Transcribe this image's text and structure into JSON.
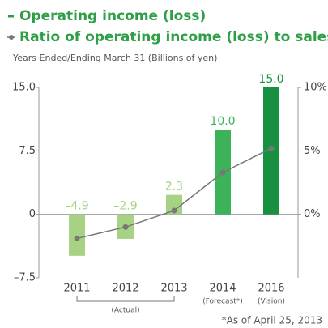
{
  "chart_data": {
    "type": "bar",
    "subtitle": "Years Ended/Ending March 31 (Billions of yen)",
    "categories": [
      "2011",
      "2012",
      "2013",
      "2014",
      "2016"
    ],
    "category_notes": [
      null,
      null,
      null,
      "(Forecast*)",
      "(Vision)"
    ],
    "group_label": "(Actual)",
    "note": "*As of April 25, 2013",
    "series": [
      {
        "name": "Operating income (loss)",
        "type": "bar",
        "color": "#2e9e47",
        "colors": [
          "#a8d283",
          "#a8d283",
          "#a8d283",
          "#3cb35a",
          "#17913f"
        ],
        "values": [
          -4.9,
          -2.9,
          2.3,
          10.0,
          15.0
        ],
        "value_labels": [
          "–4.9",
          "–2.9",
          "2.3",
          "10.0",
          "15.0"
        ]
      },
      {
        "name": "Ratio of operating income (loss) to sales",
        "type": "line",
        "axis": "y2",
        "color": "#777777",
        "values": [
          -1.9,
          -1.0,
          0.3,
          3.3,
          5.2
        ]
      }
    ],
    "ylim": [
      -7.5,
      15
    ],
    "yticks": [
      {
        "value": 15,
        "label": "15.0"
      },
      7.5,
      0,
      {
        "value": -7.5,
        "label": "–7.5"
      }
    ],
    "y2lim": [
      -5,
      10
    ],
    "y2ticks": [
      {
        "value": 10,
        "label": "10%"
      },
      {
        "value": 5,
        "label": "5%"
      },
      {
        "value": 0,
        "label": "0%"
      }
    ]
  }
}
